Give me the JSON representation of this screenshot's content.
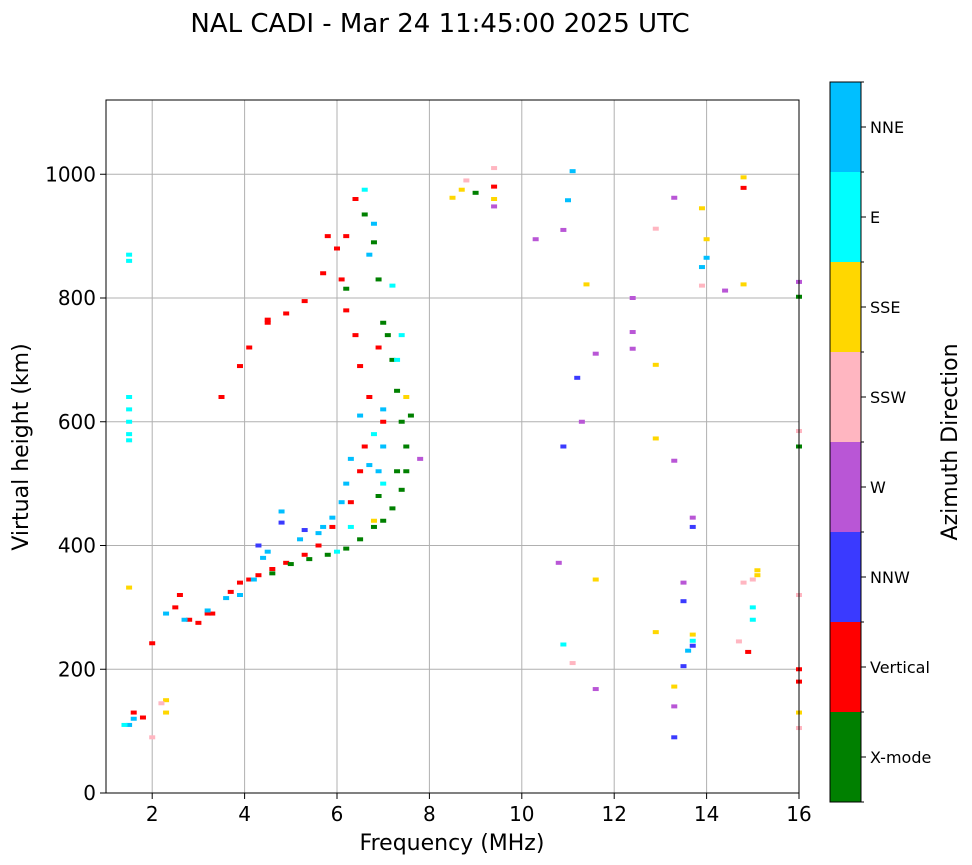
{
  "chart_data": {
    "type": "scatter",
    "title": "NAL CADI - Mar 24 11:45:00 2025 UTC",
    "xlabel": "Frequency (MHz)",
    "ylabel": "Virtual height (km)",
    "xlim": [
      1,
      16
    ],
    "ylim": [
      0,
      1120
    ],
    "xticks": [
      "2",
      "4",
      "6",
      "8",
      "10",
      "12",
      "14",
      "16"
    ],
    "yticks": [
      "0",
      "200",
      "400",
      "600",
      "800",
      "1000"
    ],
    "grid": true,
    "colorbar": {
      "title": "Azimuth Direction",
      "categories": [
        {
          "name": "X-mode",
          "color": "#008000"
        },
        {
          "name": "Vertical",
          "color": "#ff0000"
        },
        {
          "name": "NNW",
          "color": "#3a3aff"
        },
        {
          "name": "W",
          "color": "#b956d6"
        },
        {
          "name": "SSW",
          "color": "#ffb6c1"
        },
        {
          "name": "SSE",
          "color": "#ffd700"
        },
        {
          "name": "E",
          "color": "#00ffff"
        },
        {
          "name": "NNE",
          "color": "#00bfff"
        }
      ]
    },
    "series": [
      {
        "name": "Vertical",
        "points": [
          [
            1.6,
            130
          ],
          [
            1.8,
            122
          ],
          [
            2.0,
            242
          ],
          [
            2.5,
            300
          ],
          [
            2.8,
            280
          ],
          [
            3.0,
            275
          ],
          [
            3.3,
            290
          ],
          [
            3.7,
            325
          ],
          [
            3.9,
            340
          ],
          [
            4.1,
            345
          ],
          [
            4.3,
            352
          ],
          [
            4.6,
            362
          ],
          [
            4.9,
            372
          ],
          [
            5.3,
            385
          ],
          [
            5.6,
            400
          ],
          [
            5.9,
            430
          ],
          [
            6.3,
            470
          ],
          [
            6.5,
            520
          ],
          [
            6.6,
            560
          ],
          [
            6.7,
            640
          ],
          [
            6.5,
            690
          ],
          [
            6.4,
            740
          ],
          [
            6.2,
            780
          ],
          [
            6.1,
            830
          ],
          [
            6.2,
            900
          ],
          [
            6.4,
            960
          ],
          [
            3.5,
            640
          ],
          [
            3.9,
            690
          ],
          [
            4.1,
            720
          ],
          [
            4.5,
            760
          ],
          [
            4.9,
            775
          ],
          [
            5.3,
            795
          ],
          [
            5.7,
            840
          ],
          [
            6.0,
            880
          ],
          [
            5.8,
            900
          ],
          [
            7.0,
            600
          ],
          [
            6.9,
            720
          ],
          [
            9.4,
            980
          ],
          [
            14.8,
            978
          ],
          [
            14.9,
            228
          ],
          [
            16.0,
            200
          ],
          [
            16.0,
            180
          ],
          [
            2.6,
            320
          ],
          [
            4.5,
            765
          ],
          [
            3.2,
            290
          ]
        ]
      },
      {
        "name": "X-mode",
        "points": [
          [
            4.6,
            355
          ],
          [
            5.0,
            370
          ],
          [
            5.4,
            378
          ],
          [
            5.8,
            385
          ],
          [
            6.2,
            395
          ],
          [
            6.5,
            410
          ],
          [
            6.8,
            430
          ],
          [
            7.0,
            440
          ],
          [
            7.2,
            460
          ],
          [
            7.4,
            490
          ],
          [
            7.5,
            520
          ],
          [
            7.5,
            560
          ],
          [
            7.4,
            600
          ],
          [
            7.3,
            650
          ],
          [
            7.2,
            700
          ],
          [
            7.1,
            740
          ],
          [
            7.0,
            760
          ],
          [
            6.9,
            830
          ],
          [
            6.8,
            890
          ],
          [
            6.6,
            935
          ],
          [
            6.2,
            815
          ],
          [
            9.0,
            970
          ],
          [
            16.0,
            802
          ],
          [
            16.0,
            560
          ],
          [
            7.6,
            610
          ],
          [
            7.3,
            520
          ],
          [
            6.9,
            480
          ]
        ]
      },
      {
        "name": "NNE",
        "points": [
          [
            1.5,
            110
          ],
          [
            1.6,
            120
          ],
          [
            2.3,
            290
          ],
          [
            2.7,
            280
          ],
          [
            3.2,
            295
          ],
          [
            3.6,
            315
          ],
          [
            3.9,
            320
          ],
          [
            4.2,
            345
          ],
          [
            4.5,
            390
          ],
          [
            4.8,
            455
          ],
          [
            5.2,
            410
          ],
          [
            5.6,
            420
          ],
          [
            5.9,
            445
          ],
          [
            6.1,
            470
          ],
          [
            6.2,
            500
          ],
          [
            6.3,
            540
          ],
          [
            6.5,
            610
          ],
          [
            6.7,
            530
          ],
          [
            6.9,
            520
          ],
          [
            7.0,
            560
          ],
          [
            7.0,
            620
          ],
          [
            6.7,
            870
          ],
          [
            6.8,
            920
          ],
          [
            11.1,
            1005
          ],
          [
            11.0,
            958
          ],
          [
            13.6,
            230
          ],
          [
            13.9,
            850
          ],
          [
            14.0,
            865
          ],
          [
            5.7,
            430
          ],
          [
            4.4,
            380
          ]
        ]
      },
      {
        "name": "E",
        "points": [
          [
            1.5,
            870
          ],
          [
            1.5,
            860
          ],
          [
            1.5,
            640
          ],
          [
            1.5,
            620
          ],
          [
            1.5,
            600
          ],
          [
            1.5,
            580
          ],
          [
            1.5,
            570
          ],
          [
            1.4,
            110
          ],
          [
            6.0,
            390
          ],
          [
            6.3,
            430
          ],
          [
            6.8,
            580
          ],
          [
            7.0,
            500
          ],
          [
            7.3,
            700
          ],
          [
            7.4,
            740
          ],
          [
            10.9,
            240
          ],
          [
            13.7,
            246
          ],
          [
            15.0,
            300
          ],
          [
            15.0,
            280
          ],
          [
            6.6,
            975
          ],
          [
            7.2,
            820
          ]
        ]
      },
      {
        "name": "SSE",
        "points": [
          [
            1.5,
            332
          ],
          [
            2.3,
            150
          ],
          [
            2.3,
            130
          ],
          [
            8.5,
            962
          ],
          [
            8.7,
            975
          ],
          [
            9.4,
            960
          ],
          [
            11.6,
            345
          ],
          [
            12.9,
            692
          ],
          [
            12.9,
            573
          ],
          [
            12.9,
            260
          ],
          [
            13.3,
            172
          ],
          [
            13.7,
            256
          ],
          [
            13.9,
            945
          ],
          [
            14.0,
            895
          ],
          [
            14.8,
            995
          ],
          [
            14.8,
            822
          ],
          [
            15.1,
            360
          ],
          [
            15.1,
            352
          ],
          [
            16.0,
            130
          ],
          [
            6.8,
            440
          ],
          [
            7.5,
            640
          ],
          [
            11.4,
            822
          ]
        ]
      },
      {
        "name": "SSW",
        "points": [
          [
            2.0,
            90
          ],
          [
            2.2,
            145
          ],
          [
            8.8,
            990
          ],
          [
            9.4,
            1010
          ],
          [
            12.9,
            912
          ],
          [
            14.8,
            340
          ],
          [
            15.0,
            345
          ],
          [
            16.0,
            585
          ],
          [
            16.0,
            320
          ],
          [
            16.0,
            105
          ],
          [
            14.7,
            245
          ],
          [
            11.1,
            210
          ],
          [
            13.9,
            820
          ]
        ]
      },
      {
        "name": "W",
        "points": [
          [
            10.3,
            895
          ],
          [
            10.8,
            372
          ],
          [
            10.9,
            910
          ],
          [
            11.3,
            600
          ],
          [
            11.6,
            710
          ],
          [
            11.6,
            168
          ],
          [
            12.4,
            800
          ],
          [
            12.4,
            745
          ],
          [
            12.4,
            718
          ],
          [
            13.3,
            962
          ],
          [
            13.3,
            537
          ],
          [
            13.3,
            140
          ],
          [
            13.5,
            340
          ],
          [
            14.4,
            812
          ],
          [
            16.0,
            826
          ],
          [
            9.4,
            948
          ],
          [
            7.8,
            540
          ],
          [
            13.7,
            445
          ]
        ]
      },
      {
        "name": "NNW",
        "points": [
          [
            4.8,
            437
          ],
          [
            10.9,
            560
          ],
          [
            11.2,
            671
          ],
          [
            13.3,
            90
          ],
          [
            13.5,
            310
          ],
          [
            13.5,
            205
          ],
          [
            13.7,
            430
          ],
          [
            13.7,
            238
          ],
          [
            4.3,
            400
          ],
          [
            5.3,
            425
          ]
        ]
      }
    ]
  }
}
